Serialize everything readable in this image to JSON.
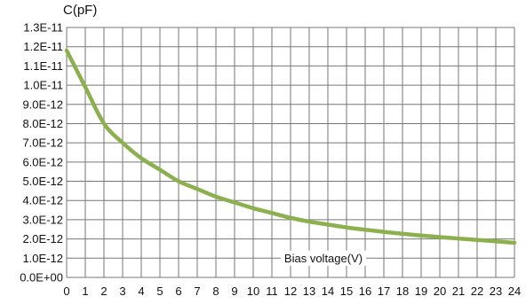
{
  "chart_data": {
    "type": "line",
    "ylabel": "C(pF)",
    "xlabel": "Bias voltage(V)",
    "xlim": [
      0,
      24
    ],
    "ylim": [
      0,
      1.3e-11
    ],
    "grid": true,
    "x_ticks": [
      0,
      1,
      2,
      3,
      4,
      5,
      6,
      7,
      8,
      9,
      10,
      11,
      12,
      13,
      14,
      15,
      16,
      17,
      18,
      19,
      20,
      21,
      22,
      23,
      24
    ],
    "x_tick_labels": [
      "0",
      "1",
      "2",
      "3",
      "4",
      "5",
      "6",
      "7",
      "8",
      "9",
      "10",
      "11",
      "12",
      "13",
      "14",
      "15",
      "16",
      "17",
      "18",
      "19",
      "20",
      "21",
      "22",
      "23",
      "24"
    ],
    "y_ticks": [
      0,
      1e-12,
      2e-12,
      3e-12,
      4e-12,
      5e-12,
      6e-12,
      7e-12,
      8e-12,
      9e-12,
      1e-11,
      1.1e-11,
      1.2e-11,
      1.3e-11
    ],
    "y_tick_labels": [
      "0.0E+00",
      "1.0E-12",
      "2.0E-12",
      "3.0E-12",
      "4.0E-12",
      "5.0E-12",
      "6.0E-12",
      "7.0E-12",
      "8.0E-12",
      "9.0E-12",
      "1.0E-11",
      "1.1E-11",
      "1.2E-11",
      "1.3E-11"
    ],
    "series": [
      {
        "color": "#8db04f",
        "x": [
          0,
          1,
          2,
          3,
          4,
          5,
          6,
          7,
          8,
          9,
          10,
          11,
          12,
          13,
          14,
          15,
          16,
          17,
          18,
          19,
          20,
          21,
          22,
          23,
          24
        ],
        "y": [
          1.18e-11,
          9.9e-12,
          8e-12,
          7e-12,
          6.2e-12,
          5.6e-12,
          5e-12,
          4.6e-12,
          4.2e-12,
          3.9e-12,
          3.6e-12,
          3.35e-12,
          3.1e-12,
          2.9e-12,
          2.75e-12,
          2.6e-12,
          2.48e-12,
          2.37e-12,
          2.27e-12,
          2.18e-12,
          2.1e-12,
          2.02e-12,
          1.95e-12,
          1.88e-12,
          1.8e-12
        ]
      }
    ]
  }
}
